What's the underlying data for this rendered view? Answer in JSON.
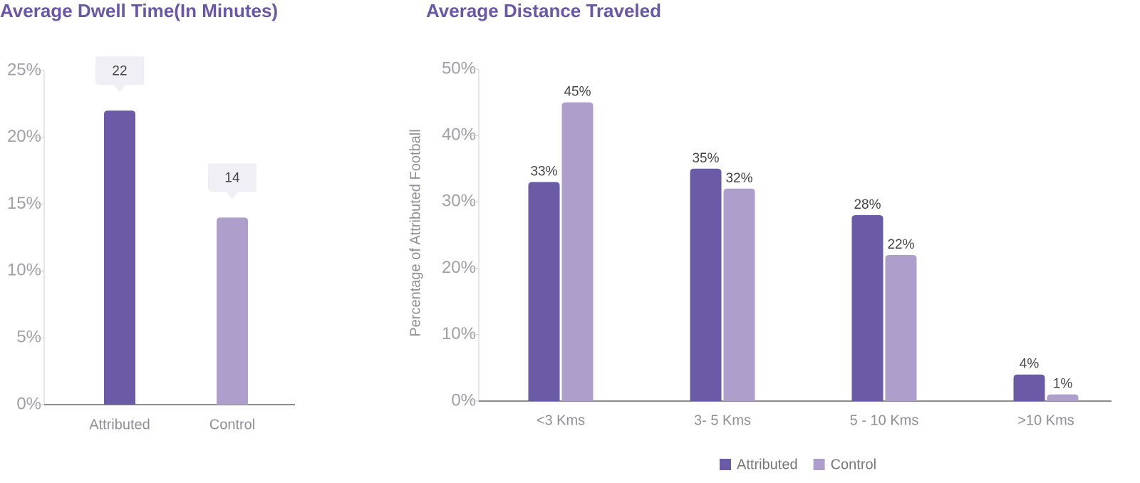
{
  "chart_data": [
    {
      "type": "bar",
      "title": "Average Dwell Time(In Minutes)",
      "categories": [
        "Attributed",
        "Control"
      ],
      "values": [
        22,
        14
      ],
      "colors": [
        "#6b5aa6",
        "#ae9ecb"
      ],
      "ylim": [
        0,
        25
      ],
      "yticks": [
        {
          "value": 0,
          "label": "0%"
        },
        {
          "value": 5,
          "label": "5%"
        },
        {
          "value": 10,
          "label": "10%"
        },
        {
          "value": 15,
          "label": "15%"
        },
        {
          "value": 20,
          "label": "20%"
        },
        {
          "value": 25,
          "label": "25%"
        }
      ]
    },
    {
      "type": "grouped_bar",
      "title": "Average Distance Traveled",
      "y_label": "Percentage of Attributed Football",
      "categories": [
        "<3 Kms",
        "3- 5 Kms",
        "5 - 10 Kms",
        ">10 Kms"
      ],
      "series": [
        {
          "name": "Attributed",
          "color": "#6b5aa6",
          "values": [
            33,
            35,
            28,
            4
          ],
          "value_labels": [
            "33%",
            "35%",
            "28%",
            "4%"
          ]
        },
        {
          "name": "Control",
          "color": "#ae9ecb",
          "values": [
            45,
            32,
            22,
            1
          ],
          "value_labels": [
            "45%",
            "32%",
            "22%",
            "1%"
          ]
        }
      ],
      "ylim": [
        0,
        50
      ],
      "yticks": [
        {
          "value": 0,
          "label": "0%"
        },
        {
          "value": 10,
          "label": "10%"
        },
        {
          "value": 20,
          "label": "20%"
        },
        {
          "value": 30,
          "label": "30%"
        },
        {
          "value": 40,
          "label": "40%"
        },
        {
          "value": 50,
          "label": "50%"
        }
      ],
      "legend": "bottom"
    }
  ]
}
